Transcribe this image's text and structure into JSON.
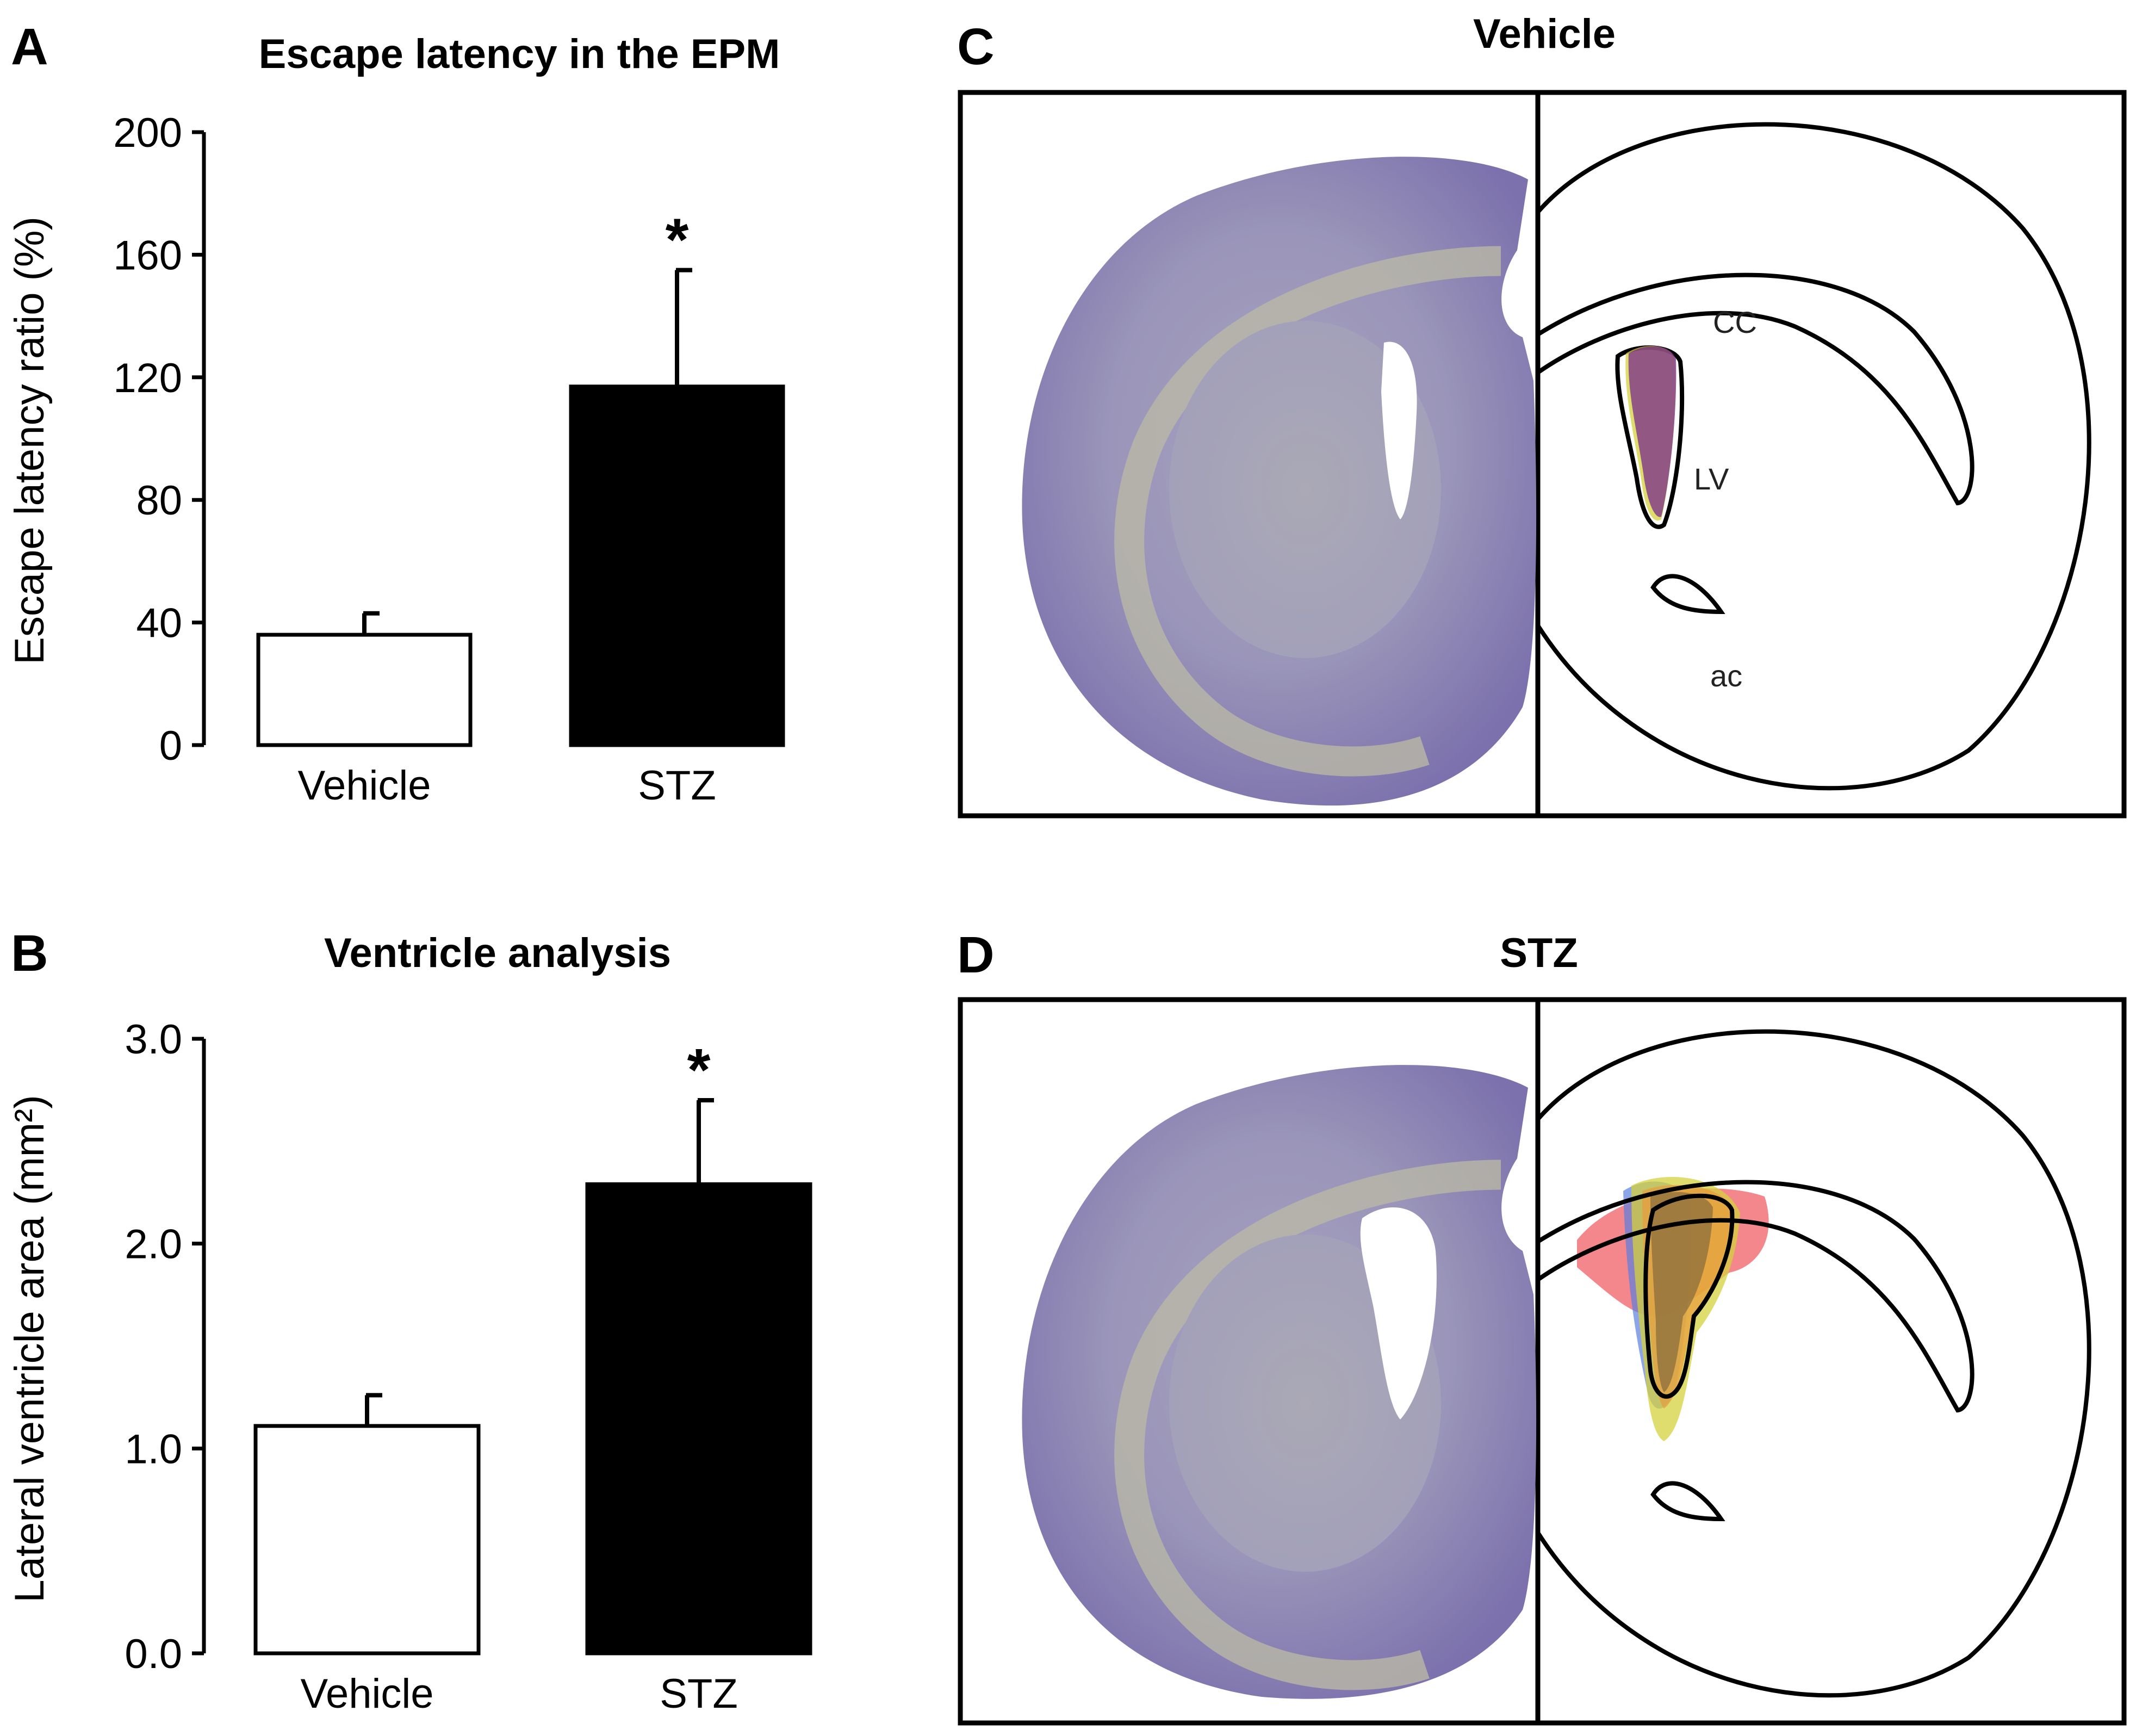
{
  "panel_letters": [
    "A",
    "B",
    "C",
    "D"
  ],
  "colors": {
    "vehicle_bar": "#ffffff",
    "stz_bar": "#000000",
    "nissl_stain": "#8f86b8",
    "overlay_red": "#f0545a",
    "overlay_blue": "#5b7fe0",
    "overlay_yellow": "#d4d23c",
    "overlay_orange": "#e89b3c",
    "overlay_purple": "#7a2a8c"
  },
  "chart_data": [
    {
      "panel": "A",
      "type": "bar",
      "title": "Escape latency in the EPM",
      "xlabel": "",
      "ylabel": "Escape latency ratio (%)",
      "categories": [
        "Vehicle",
        "STZ"
      ],
      "values": [
        36,
        117
      ],
      "errors": [
        7,
        38
      ],
      "ylim": [
        0,
        200
      ],
      "yticks": [
        "0",
        "40",
        "80",
        "120",
        "160",
        "200"
      ],
      "ytick_values": [
        0,
        40,
        80,
        120,
        160,
        200
      ],
      "significance": [
        "",
        "*"
      ],
      "grid": false
    },
    {
      "panel": "B",
      "type": "bar",
      "title": "Ventricle analysis",
      "xlabel": "",
      "ylabel": "Lateral ventricle area (mm²)",
      "categories": [
        "Vehicle",
        "STZ"
      ],
      "values": [
        1.11,
        2.29
      ],
      "errors": [
        0.15,
        0.41
      ],
      "ylim": [
        0,
        3
      ],
      "yticks": [
        "0.0",
        "1.0",
        "2.0",
        "3.0"
      ],
      "ytick_values": [
        0,
        1,
        2,
        3
      ],
      "significance": [
        "",
        "*"
      ],
      "grid": false
    }
  ],
  "histology": [
    {
      "panel": "C",
      "title": "Vehicle",
      "atlas_labels": [
        "CC",
        "LV",
        "ac"
      ]
    },
    {
      "panel": "D",
      "title": "STZ",
      "atlas_labels": []
    }
  ]
}
